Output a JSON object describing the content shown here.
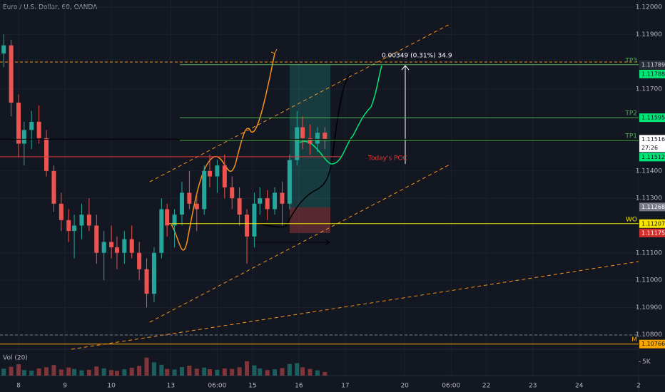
{
  "chart_data": {
    "type": "candlestick",
    "title": "Euro / U.S. Dollar, 60, OANDA",
    "xlim": [
      0,
      344
    ],
    "xticks": [
      8,
      9,
      10,
      13,
      {
        "value": 117,
        "label": "06:00"
      },
      15,
      16,
      17,
      20,
      {
        "value": 243,
        "label": "06:00"
      },
      22,
      23,
      24,
      2
    ],
    "xtick_pos": [
      10,
      35,
      60,
      92,
      117,
      136,
      161,
      186,
      218,
      243,
      262,
      287,
      312,
      344
    ],
    "ylim": [
      1.10747,
      1.12026
    ],
    "yticks": [
      {
        "value": 1.12,
        "label": "1.12000"
      },
      {
        "value": 1.119,
        "label": "1.11900"
      },
      {
        "value": 1.117,
        "label": "1.11700"
      },
      {
        "value": 1.114,
        "label": "1.11400"
      },
      {
        "value": 1.113,
        "label": "1.11300"
      },
      {
        "value": 1.111,
        "label": "1.11100"
      },
      {
        "value": 1.11,
        "label": "1.11000"
      },
      {
        "value": 1.109,
        "label": "1.10900"
      },
      {
        "value": 1.108,
        "label": "1.10800"
      }
    ],
    "grid": true,
    "up_color": "#26a69a",
    "down_color": "#ef5350",
    "x": [
      2,
      6,
      10,
      13,
      17,
      21,
      25,
      29,
      33,
      37,
      40,
      44,
      48,
      52,
      56,
      60,
      63,
      67,
      71,
      75,
      79,
      83,
      87,
      90,
      94,
      98,
      102,
      106,
      110,
      113,
      117,
      121,
      125,
      129,
      133,
      137,
      140,
      144,
      148,
      152,
      156,
      160,
      163,
      167,
      171,
      175
    ],
    "open": [
      1.1183,
      1.1186,
      1.1165,
      1.115,
      1.1155,
      1.1158,
      1.1152,
      1.114,
      1.1128,
      1.1122,
      1.1118,
      1.112,
      1.1124,
      1.112,
      1.111,
      1.1114,
      1.1112,
      1.111,
      1.1115,
      1.111,
      1.1104,
      1.1095,
      1.111,
      1.1126,
      1.112,
      1.1124,
      1.1132,
      1.1128,
      1.1126,
      1.114,
      1.1138,
      1.1142,
      1.1134,
      1.113,
      1.1124,
      1.1116,
      1.1128,
      1.113,
      1.1126,
      1.1132,
      1.1128,
      1.1144,
      1.1156,
      1.1152,
      1.115,
      1.1154
    ],
    "high": [
      1.119,
      1.1188,
      1.1168,
      1.1158,
      1.1162,
      1.1164,
      1.1155,
      1.1142,
      1.1132,
      1.1126,
      1.1124,
      1.1128,
      1.113,
      1.1124,
      1.1118,
      1.112,
      1.1116,
      1.1118,
      1.112,
      1.1114,
      1.1108,
      1.1112,
      1.113,
      1.1128,
      1.1126,
      1.1136,
      1.114,
      1.1132,
      1.1142,
      1.1146,
      1.1144,
      1.1146,
      1.1138,
      1.1134,
      1.1126,
      1.1132,
      1.1134,
      1.1133,
      1.1134,
      1.1136,
      1.1146,
      1.1162,
      1.116,
      1.1157,
      1.1156,
      1.1156
    ],
    "low": [
      1.1178,
      1.116,
      1.1145,
      1.1142,
      1.1148,
      1.115,
      1.1138,
      1.1125,
      1.1118,
      1.1114,
      1.1108,
      1.1115,
      1.1118,
      1.1106,
      1.11,
      1.1108,
      1.1104,
      1.1106,
      1.1108,
      1.11,
      1.109,
      1.1092,
      1.1108,
      1.1116,
      1.1112,
      1.112,
      1.1126,
      1.1118,
      1.1124,
      1.1134,
      1.1132,
      1.113,
      1.1126,
      1.112,
      1.1106,
      1.1112,
      1.1124,
      1.1122,
      1.1124,
      1.112,
      1.1126,
      1.1142,
      1.1148,
      1.1146,
      1.1147,
      1.1148
    ],
    "close": [
      1.1186,
      1.1165,
      1.115,
      1.1155,
      1.1158,
      1.1152,
      1.114,
      1.1128,
      1.1122,
      1.1118,
      1.112,
      1.1124,
      1.112,
      1.111,
      1.1114,
      1.1112,
      1.111,
      1.1115,
      1.111,
      1.1104,
      1.1095,
      1.111,
      1.1126,
      1.112,
      1.1124,
      1.1132,
      1.1128,
      1.1126,
      1.114,
      1.1138,
      1.1142,
      1.1134,
      1.113,
      1.1124,
      1.1116,
      1.1128,
      1.113,
      1.1126,
      1.1132,
      1.1128,
      1.1144,
      1.1156,
      1.1152,
      1.115,
      1.1154,
      1.11516
    ],
    "volume": {
      "label": "Vol (20)",
      "ylim": [
        0,
        9000
      ],
      "yticks": [
        {
          "value": 5000,
          "label": "5K"
        }
      ],
      "values": [
        2500,
        3200,
        4100,
        2000,
        1800,
        2600,
        3000,
        3800,
        2200,
        2900,
        2400,
        1900,
        2100,
        3300,
        2600,
        2000,
        1700,
        2300,
        2800,
        3500,
        6500,
        4800,
        3900,
        2400,
        2200,
        3100,
        3600,
        2500,
        2900,
        2300,
        2100,
        2600,
        2400,
        3000,
        5200,
        3700,
        2600,
        2000,
        2300,
        2700,
        4200,
        4500,
        3000,
        2400,
        1900,
        1300
      ]
    },
    "levels": [
      {
        "label": "TP3",
        "value": 1.11789,
        "color": "#4caf50"
      },
      {
        "label": "TP2",
        "value": 1.11595,
        "color": "#4caf50"
      },
      {
        "label": "TP1",
        "value": 1.11512,
        "color": "#4caf50"
      },
      {
        "label": "Today's POC",
        "value": 1.11452,
        "color": "#e53935"
      },
      {
        "label": "WO",
        "value": 1.11207,
        "color": "#f7e600"
      },
      {
        "label": "M",
        "value": 1.10766,
        "color": "#f7a600"
      }
    ],
    "price_tags": [
      {
        "value": 1.11789,
        "color": "#2a2e39",
        "text_color": "#d1d4dc"
      },
      {
        "value": 1.11788,
        "color": "#00e676",
        "text_color": "#131722"
      },
      {
        "value": 1.11595,
        "color": "#00e676",
        "text_color": "#131722"
      },
      {
        "value": 1.11516,
        "color": "#ffffff",
        "text_color": "#131722",
        "countdown": "27:26"
      },
      {
        "value": 1.11512,
        "color": "#00e676",
        "text_color": "#131722"
      },
      {
        "value": 1.11268,
        "color": "#787b86",
        "text_color": "#ffffff"
      },
      {
        "value": 1.11207,
        "color": "#f7e600",
        "text_color": "#131722"
      },
      {
        "value": 1.11175,
        "color": "#d32f2f",
        "text_color": "#ffffff"
      },
      {
        "value": 1.10766,
        "color": "#f7a600",
        "text_color": "#131722"
      }
    ],
    "annotations": [
      "0.00349 (0.31%) 34.9"
    ]
  }
}
